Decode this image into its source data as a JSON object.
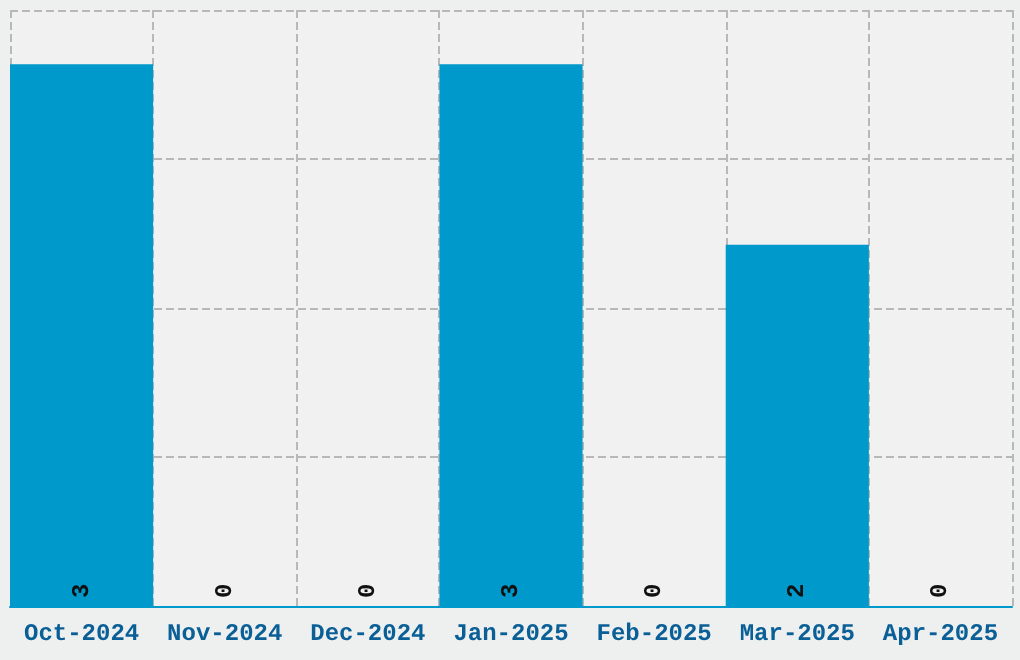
{
  "chart_data": {
    "type": "bar",
    "categories": [
      "Oct-2024",
      "Nov-2024",
      "Dec-2024",
      "Jan-2025",
      "Feb-2025",
      "Mar-2025",
      "Apr-2025"
    ],
    "values": [
      3,
      0,
      0,
      3,
      0,
      2,
      0
    ],
    "color": "#0099cc",
    "ylim": [
      0,
      3.3
    ],
    "yticks": [
      {
        "value": 0.825,
        "label": null
      },
      {
        "value": 1.65,
        "label": null
      },
      {
        "value": 2.475,
        "label": null
      },
      {
        "value": 3.3,
        "label": null
      }
    ],
    "tick_labels": "x",
    "grid": true,
    "data_labels": true
  }
}
